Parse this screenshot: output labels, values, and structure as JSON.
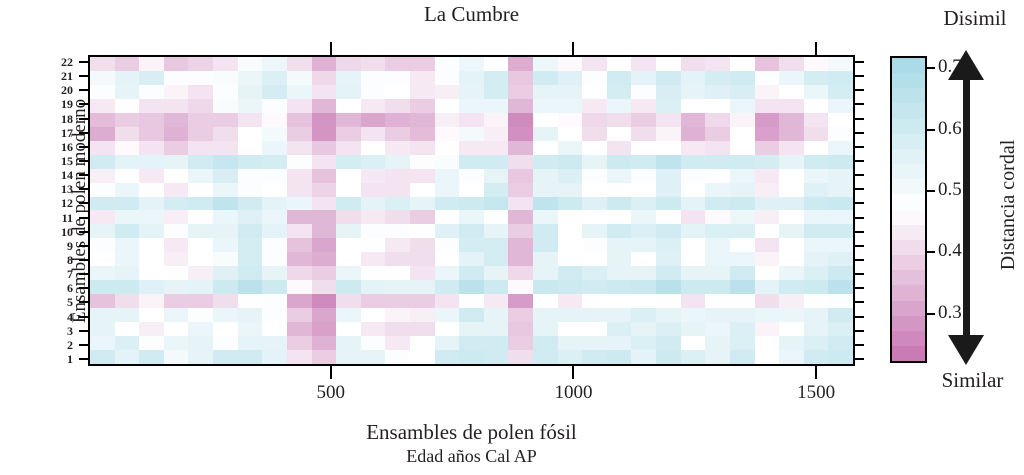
{
  "title": "La Cumbre",
  "y_axis_title": "Ensambles de polen moderno",
  "x_axis_title_line1": "Ensambles de polen fósil",
  "x_axis_title_line2": "Edad años Cal AP",
  "colorbar_title": "Distancia cordal",
  "colorbar_top_label": "Disimil",
  "colorbar_bottom_label": "Similar",
  "chart_data": {
    "type": "heatmap",
    "title": "La Cumbre",
    "x_axis": {
      "label": "Ensambles de polen fósil",
      "sublabel": "Edad años Cal AP",
      "ticks": [
        500,
        1000,
        1500
      ],
      "range": [
        0,
        1580
      ],
      "grid": false
    },
    "y_axis": {
      "label": "Ensambles de polen moderno",
      "categories_top_to_bottom": [
        "22",
        "21",
        "20",
        "19",
        "18",
        "17",
        "16",
        "15",
        "14",
        "13",
        "12",
        "11",
        "10",
        "9",
        "8",
        "7",
        "6",
        "5",
        "4",
        "3",
        "2",
        "1"
      ]
    },
    "colorbar": {
      "title": "Distancia cordal",
      "top_annotation": "Disimil",
      "bottom_annotation": "Similar",
      "ticks": [
        0.7,
        0.6,
        0.5,
        0.4,
        0.3
      ],
      "range": [
        0.22,
        0.72
      ],
      "midpoint": 0.47,
      "color_low": "#c674b2",
      "color_mid": "#ffffff",
      "color_high": "#a6d9e6",
      "segments": 20
    },
    "n_columns": 31,
    "rows_top_to_bottom": [
      {
        "label": "22",
        "values": [
          0.41,
          0.38,
          0.45,
          0.37,
          0.39,
          0.42,
          0.49,
          0.52,
          0.41,
          0.33,
          0.4,
          0.41,
          0.38,
          0.38,
          0.48,
          0.52,
          0.47,
          0.32,
          0.52,
          0.46,
          0.42,
          0.47,
          0.42,
          0.47,
          0.41,
          0.42,
          0.47,
          0.36,
          0.41,
          0.46,
          0.5
        ]
      },
      {
        "label": "21",
        "values": [
          0.5,
          0.55,
          0.58,
          0.48,
          0.48,
          0.49,
          0.53,
          0.57,
          0.5,
          0.4,
          0.54,
          0.48,
          0.48,
          0.43,
          0.48,
          0.55,
          0.59,
          0.37,
          0.6,
          0.56,
          0.48,
          0.6,
          0.55,
          0.6,
          0.55,
          0.59,
          0.6,
          0.48,
          0.53,
          0.59,
          0.6
        ]
      },
      {
        "label": "20",
        "values": [
          0.48,
          0.54,
          0.48,
          0.45,
          0.42,
          0.48,
          0.54,
          0.59,
          0.53,
          0.42,
          0.55,
          0.48,
          0.47,
          0.43,
          0.44,
          0.54,
          0.59,
          0.38,
          0.54,
          0.54,
          0.47,
          0.59,
          0.48,
          0.58,
          0.54,
          0.56,
          0.58,
          0.45,
          0.47,
          0.53,
          0.59
        ]
      },
      {
        "label": "19",
        "values": [
          0.43,
          0.47,
          0.42,
          0.42,
          0.4,
          0.49,
          0.53,
          0.48,
          0.42,
          0.34,
          0.47,
          0.43,
          0.41,
          0.38,
          0.47,
          0.53,
          0.53,
          0.34,
          0.53,
          0.53,
          0.43,
          0.53,
          0.43,
          0.57,
          0.47,
          0.47,
          0.53,
          0.42,
          0.42,
          0.47,
          0.53
        ]
      },
      {
        "label": "18",
        "values": [
          0.35,
          0.38,
          0.37,
          0.34,
          0.38,
          0.38,
          0.42,
          0.46,
          0.36,
          0.28,
          0.34,
          0.31,
          0.33,
          0.34,
          0.44,
          0.42,
          0.45,
          0.26,
          0.47,
          0.46,
          0.4,
          0.41,
          0.38,
          0.42,
          0.34,
          0.4,
          0.45,
          0.29,
          0.34,
          0.42,
          0.47
        ]
      },
      {
        "label": "17",
        "values": [
          0.32,
          0.41,
          0.37,
          0.33,
          0.38,
          0.41,
          0.47,
          0.5,
          0.38,
          0.28,
          0.38,
          0.42,
          0.38,
          0.35,
          0.46,
          0.5,
          0.44,
          0.27,
          0.54,
          0.47,
          0.41,
          0.47,
          0.41,
          0.45,
          0.33,
          0.38,
          0.47,
          0.3,
          0.34,
          0.41,
          0.48
        ]
      },
      {
        "label": "16",
        "values": [
          0.42,
          0.46,
          0.42,
          0.38,
          0.42,
          0.42,
          0.47,
          0.53,
          0.42,
          0.37,
          0.42,
          0.47,
          0.43,
          0.42,
          0.47,
          0.43,
          0.43,
          0.34,
          0.47,
          0.53,
          0.47,
          0.42,
          0.47,
          0.47,
          0.43,
          0.42,
          0.47,
          0.38,
          0.42,
          0.47,
          0.53
        ]
      },
      {
        "label": "15",
        "values": [
          0.6,
          0.55,
          0.55,
          0.54,
          0.6,
          0.63,
          0.6,
          0.59,
          0.48,
          0.42,
          0.59,
          0.57,
          0.54,
          0.48,
          0.49,
          0.6,
          0.6,
          0.41,
          0.6,
          0.61,
          0.54,
          0.61,
          0.6,
          0.65,
          0.6,
          0.6,
          0.6,
          0.59,
          0.54,
          0.6,
          0.61
        ]
      },
      {
        "label": "14",
        "values": [
          0.44,
          0.47,
          0.43,
          0.47,
          0.53,
          0.58,
          0.48,
          0.48,
          0.42,
          0.36,
          0.47,
          0.43,
          0.42,
          0.42,
          0.53,
          0.48,
          0.54,
          0.37,
          0.54,
          0.57,
          0.48,
          0.53,
          0.48,
          0.56,
          0.48,
          0.47,
          0.53,
          0.43,
          0.47,
          0.53,
          0.54
        ]
      },
      {
        "label": "13",
        "values": [
          0.48,
          0.53,
          0.47,
          0.43,
          0.47,
          0.53,
          0.48,
          0.47,
          0.42,
          0.39,
          0.47,
          0.42,
          0.42,
          0.47,
          0.53,
          0.47,
          0.59,
          0.38,
          0.54,
          0.54,
          0.47,
          0.47,
          0.47,
          0.56,
          0.47,
          0.53,
          0.54,
          0.44,
          0.47,
          0.56,
          0.54
        ]
      },
      {
        "label": "12",
        "values": [
          0.6,
          0.6,
          0.55,
          0.59,
          0.6,
          0.65,
          0.6,
          0.55,
          0.53,
          0.42,
          0.6,
          0.55,
          0.57,
          0.54,
          0.6,
          0.61,
          0.63,
          0.42,
          0.65,
          0.61,
          0.56,
          0.61,
          0.57,
          0.61,
          0.55,
          0.6,
          0.61,
          0.56,
          0.56,
          0.61,
          0.62
        ]
      },
      {
        "label": "11",
        "values": [
          0.43,
          0.53,
          0.53,
          0.44,
          0.47,
          0.53,
          0.56,
          0.53,
          0.34,
          0.34,
          0.41,
          0.43,
          0.41,
          0.38,
          0.47,
          0.53,
          0.47,
          0.34,
          0.53,
          0.47,
          0.47,
          0.47,
          0.53,
          0.47,
          0.42,
          0.46,
          0.52,
          0.44,
          0.47,
          0.53,
          0.53
        ]
      },
      {
        "label": "10",
        "values": [
          0.54,
          0.6,
          0.55,
          0.48,
          0.54,
          0.54,
          0.6,
          0.55,
          0.42,
          0.34,
          0.54,
          0.48,
          0.48,
          0.47,
          0.56,
          0.6,
          0.54,
          0.38,
          0.6,
          0.47,
          0.54,
          0.6,
          0.57,
          0.6,
          0.55,
          0.57,
          0.57,
          0.47,
          0.54,
          0.6,
          0.6
        ]
      },
      {
        "label": "9",
        "values": [
          0.48,
          0.53,
          0.47,
          0.43,
          0.47,
          0.53,
          0.59,
          0.48,
          0.36,
          0.31,
          0.47,
          0.47,
          0.43,
          0.41,
          0.48,
          0.59,
          0.59,
          0.34,
          0.6,
          0.47,
          0.48,
          0.54,
          0.54,
          0.57,
          0.47,
          0.53,
          0.47,
          0.42,
          0.47,
          0.53,
          0.53
        ]
      },
      {
        "label": "8",
        "values": [
          0.47,
          0.53,
          0.47,
          0.44,
          0.47,
          0.49,
          0.59,
          0.48,
          0.34,
          0.32,
          0.47,
          0.43,
          0.41,
          0.41,
          0.47,
          0.55,
          0.59,
          0.34,
          0.54,
          0.47,
          0.47,
          0.54,
          0.47,
          0.56,
          0.47,
          0.53,
          0.53,
          0.45,
          0.47,
          0.55,
          0.56
        ]
      },
      {
        "label": "7",
        "values": [
          0.53,
          0.54,
          0.47,
          0.47,
          0.44,
          0.56,
          0.6,
          0.54,
          0.4,
          0.38,
          0.53,
          0.47,
          0.47,
          0.42,
          0.53,
          0.6,
          0.54,
          0.4,
          0.54,
          0.6,
          0.57,
          0.54,
          0.54,
          0.6,
          0.54,
          0.54,
          0.6,
          0.47,
          0.53,
          0.57,
          0.61
        ]
      },
      {
        "label": "6",
        "values": [
          0.61,
          0.61,
          0.56,
          0.54,
          0.55,
          0.61,
          0.66,
          0.61,
          0.46,
          0.41,
          0.61,
          0.55,
          0.54,
          0.54,
          0.6,
          0.66,
          0.61,
          0.46,
          0.62,
          0.61,
          0.6,
          0.61,
          0.62,
          0.67,
          0.61,
          0.61,
          0.66,
          0.55,
          0.6,
          0.61,
          0.66
        ]
      },
      {
        "label": "5",
        "values": [
          0.36,
          0.41,
          0.45,
          0.38,
          0.38,
          0.41,
          0.47,
          0.48,
          0.31,
          0.26,
          0.41,
          0.38,
          0.38,
          0.38,
          0.42,
          0.47,
          0.43,
          0.29,
          0.47,
          0.43,
          0.47,
          0.47,
          0.47,
          0.47,
          0.42,
          0.47,
          0.47,
          0.41,
          0.44,
          0.47,
          0.48
        ]
      },
      {
        "label": "4",
        "values": [
          0.54,
          0.54,
          0.47,
          0.53,
          0.48,
          0.53,
          0.54,
          0.48,
          0.38,
          0.31,
          0.53,
          0.47,
          0.45,
          0.44,
          0.53,
          0.6,
          0.54,
          0.38,
          0.54,
          0.54,
          0.54,
          0.54,
          0.57,
          0.54,
          0.53,
          0.54,
          0.54,
          0.53,
          0.53,
          0.54,
          0.6
        ]
      },
      {
        "label": "3",
        "values": [
          0.54,
          0.47,
          0.44,
          0.47,
          0.53,
          0.47,
          0.53,
          0.47,
          0.34,
          0.3,
          0.47,
          0.43,
          0.41,
          0.41,
          0.47,
          0.54,
          0.54,
          0.37,
          0.54,
          0.47,
          0.47,
          0.57,
          0.54,
          0.57,
          0.54,
          0.53,
          0.57,
          0.45,
          0.47,
          0.54,
          0.57
        ]
      },
      {
        "label": "2",
        "values": [
          0.53,
          0.57,
          0.48,
          0.53,
          0.54,
          0.48,
          0.54,
          0.54,
          0.38,
          0.33,
          0.54,
          0.48,
          0.43,
          0.47,
          0.54,
          0.6,
          0.6,
          0.38,
          0.6,
          0.54,
          0.54,
          0.54,
          0.57,
          0.6,
          0.47,
          0.54,
          0.57,
          0.47,
          0.54,
          0.57,
          0.6
        ]
      },
      {
        "label": "1",
        "values": [
          0.6,
          0.55,
          0.6,
          0.5,
          0.54,
          0.6,
          0.6,
          0.55,
          0.42,
          0.38,
          0.54,
          0.54,
          0.48,
          0.47,
          0.6,
          0.61,
          0.6,
          0.41,
          0.6,
          0.57,
          0.6,
          0.61,
          0.55,
          0.61,
          0.57,
          0.54,
          0.6,
          0.47,
          0.53,
          0.6,
          0.61
        ]
      }
    ]
  }
}
